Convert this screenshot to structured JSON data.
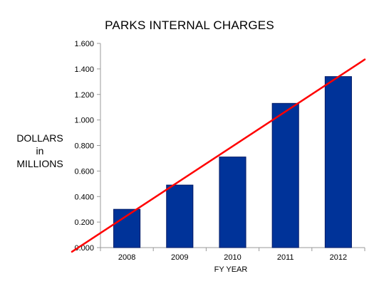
{
  "chart_data": {
    "type": "bar",
    "title": "PARKS INTERNAL CHARGES",
    "xlabel": "FY YEAR",
    "ylabel": "DOLLARS\nin\nMILLIONS",
    "categories": [
      "2008",
      "2009",
      "2010",
      "2011",
      "2012"
    ],
    "values": [
      0.3,
      0.49,
      0.71,
      1.13,
      1.34
    ],
    "ylim": [
      0,
      1.6
    ],
    "yticks": [
      "0.000",
      "0.200",
      "0.400",
      "0.600",
      "0.800",
      "1.000",
      "1.200",
      "1.400",
      "1.600"
    ],
    "grid": false,
    "legend": "none",
    "trendline": {
      "type": "linear",
      "color": "#ff0000"
    },
    "colors": {
      "bar": "#003399",
      "bar_edge": "#001a66",
      "axis": "#999999",
      "trendline": "#ff0000"
    }
  }
}
